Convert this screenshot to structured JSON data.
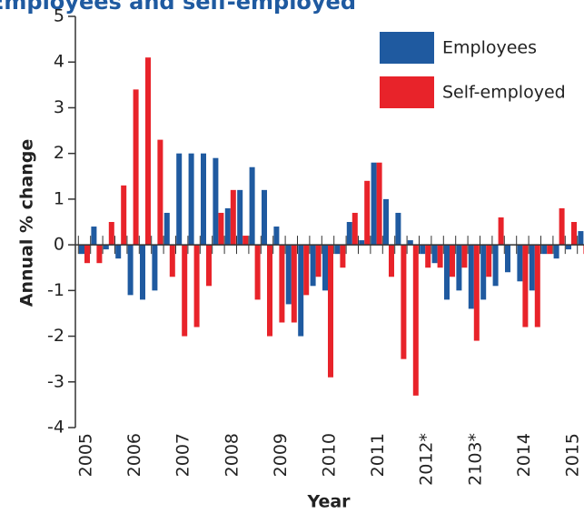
{
  "chart_data": {
    "type": "bar",
    "title": "Employees and self-employed",
    "x_label": "Year",
    "y_label": "Annual % change",
    "categories": [
      "2005",
      null,
      null,
      null,
      "2006",
      null,
      null,
      null,
      "2007",
      null,
      null,
      null,
      "2008",
      null,
      null,
      null,
      "2009",
      null,
      null,
      null,
      "2010",
      null,
      null,
      null,
      "2011",
      null,
      null,
      null,
      "2012*",
      null,
      null,
      null,
      "2103*",
      null,
      null,
      null,
      "2014",
      null,
      null,
      null,
      "2015",
      null
    ],
    "series": [
      {
        "name": "Employees",
        "color": "#1f5aa0",
        "values": [
          -0.2,
          0.4,
          -0.1,
          -0.3,
          -1.1,
          -1.2,
          -1.0,
          0.7,
          2.0,
          2.0,
          2.0,
          1.9,
          0.8,
          1.2,
          1.7,
          1.2,
          0.4,
          -1.3,
          -2.0,
          -0.9,
          -1.0,
          -0.2,
          0.5,
          0.1,
          1.8,
          1.0,
          0.7,
          0.1,
          -0.2,
          -0.4,
          -1.2,
          -1.0,
          -1.4,
          -1.2,
          -0.9,
          -0.6,
          -0.8,
          -1.0,
          -0.2,
          -0.3,
          -0.1,
          0.3
        ]
      },
      {
        "name": "Self-employed",
        "color": "#e8232a",
        "values": [
          -0.4,
          -0.4,
          0.5,
          1.3,
          3.4,
          4.1,
          2.3,
          -0.7,
          -2.0,
          -1.8,
          -0.9,
          0.7,
          1.2,
          0.2,
          -1.2,
          -2.0,
          -1.7,
          -1.7,
          -1.1,
          -0.7,
          -2.9,
          -0.5,
          0.7,
          1.4,
          1.8,
          -0.7,
          -2.5,
          -3.3,
          -0.5,
          -0.5,
          -0.7,
          -0.5,
          -2.1,
          -0.7,
          0.6,
          0,
          -1.8,
          -1.8,
          -0.2,
          0.8,
          0.5,
          -0.2
        ]
      }
    ],
    "ylim": [
      -4,
      5
    ],
    "yticks": [
      -4,
      -3,
      -2,
      -1,
      0,
      1,
      2,
      3,
      4,
      5
    ],
    "legend": "top-right"
  }
}
